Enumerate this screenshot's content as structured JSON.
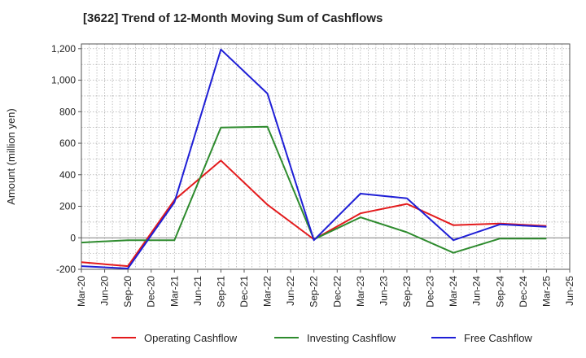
{
  "chart_data": {
    "type": "line",
    "title": "[3622]  Trend of 12-Month Moving Sum of Cashflows",
    "ylabel": "Amount (million yen)",
    "xlabel": "",
    "ylim": [
      -200,
      1230
    ],
    "yticks": [
      -200,
      0,
      200,
      400,
      600,
      800,
      1000,
      1200
    ],
    "ytick_labels": [
      "-200",
      "0",
      "200",
      "400",
      "600",
      "800",
      "1,000",
      "1,200"
    ],
    "x_ticks": [
      "Mar-20",
      "Jun-20",
      "Sep-20",
      "Dec-20",
      "Mar-21",
      "Jun-21",
      "Sep-21",
      "Dec-21",
      "Mar-22",
      "Jun-22",
      "Sep-22",
      "Dec-22",
      "Mar-23",
      "Jun-23",
      "Sep-23",
      "Dec-23",
      "Mar-24",
      "Jun-24",
      "Sep-24",
      "Dec-24",
      "Mar-25",
      "Jun-25"
    ],
    "grid": true,
    "legend_position": "bottom",
    "series": [
      {
        "name": "Operating Cashflow",
        "color": "#e31a1c",
        "points": [
          [
            "Mar-20",
            -155
          ],
          [
            "Sep-20",
            -180
          ],
          [
            "Mar-21",
            240
          ],
          [
            "Sep-21",
            490
          ],
          [
            "Mar-22",
            210
          ],
          [
            "Sep-22",
            -10
          ],
          [
            "Mar-23",
            155
          ],
          [
            "Sep-23",
            215
          ],
          [
            "Mar-24",
            80
          ],
          [
            "Sep-24",
            90
          ],
          [
            "Mar-25",
            75
          ]
        ]
      },
      {
        "name": "Investing Cashflow",
        "color": "#2e8b2e",
        "points": [
          [
            "Mar-20",
            -30
          ],
          [
            "Sep-20",
            -15
          ],
          [
            "Mar-21",
            -15
          ],
          [
            "Sep-21",
            700
          ],
          [
            "Mar-22",
            705
          ],
          [
            "Sep-22",
            -10
          ],
          [
            "Mar-23",
            130
          ],
          [
            "Sep-23",
            35
          ],
          [
            "Mar-24",
            -95
          ],
          [
            "Sep-24",
            -5
          ],
          [
            "Mar-25",
            -5
          ]
        ]
      },
      {
        "name": "Free Cashflow",
        "color": "#1f1fd6",
        "points": [
          [
            "Mar-20",
            -180
          ],
          [
            "Sep-20",
            -195
          ],
          [
            "Mar-21",
            225
          ],
          [
            "Sep-21",
            1195
          ],
          [
            "Mar-22",
            915
          ],
          [
            "Sep-22",
            -15
          ],
          [
            "Mar-23",
            280
          ],
          [
            "Sep-23",
            250
          ],
          [
            "Mar-24",
            -15
          ],
          [
            "Sep-24",
            85
          ],
          [
            "Mar-25",
            70
          ]
        ]
      }
    ]
  }
}
